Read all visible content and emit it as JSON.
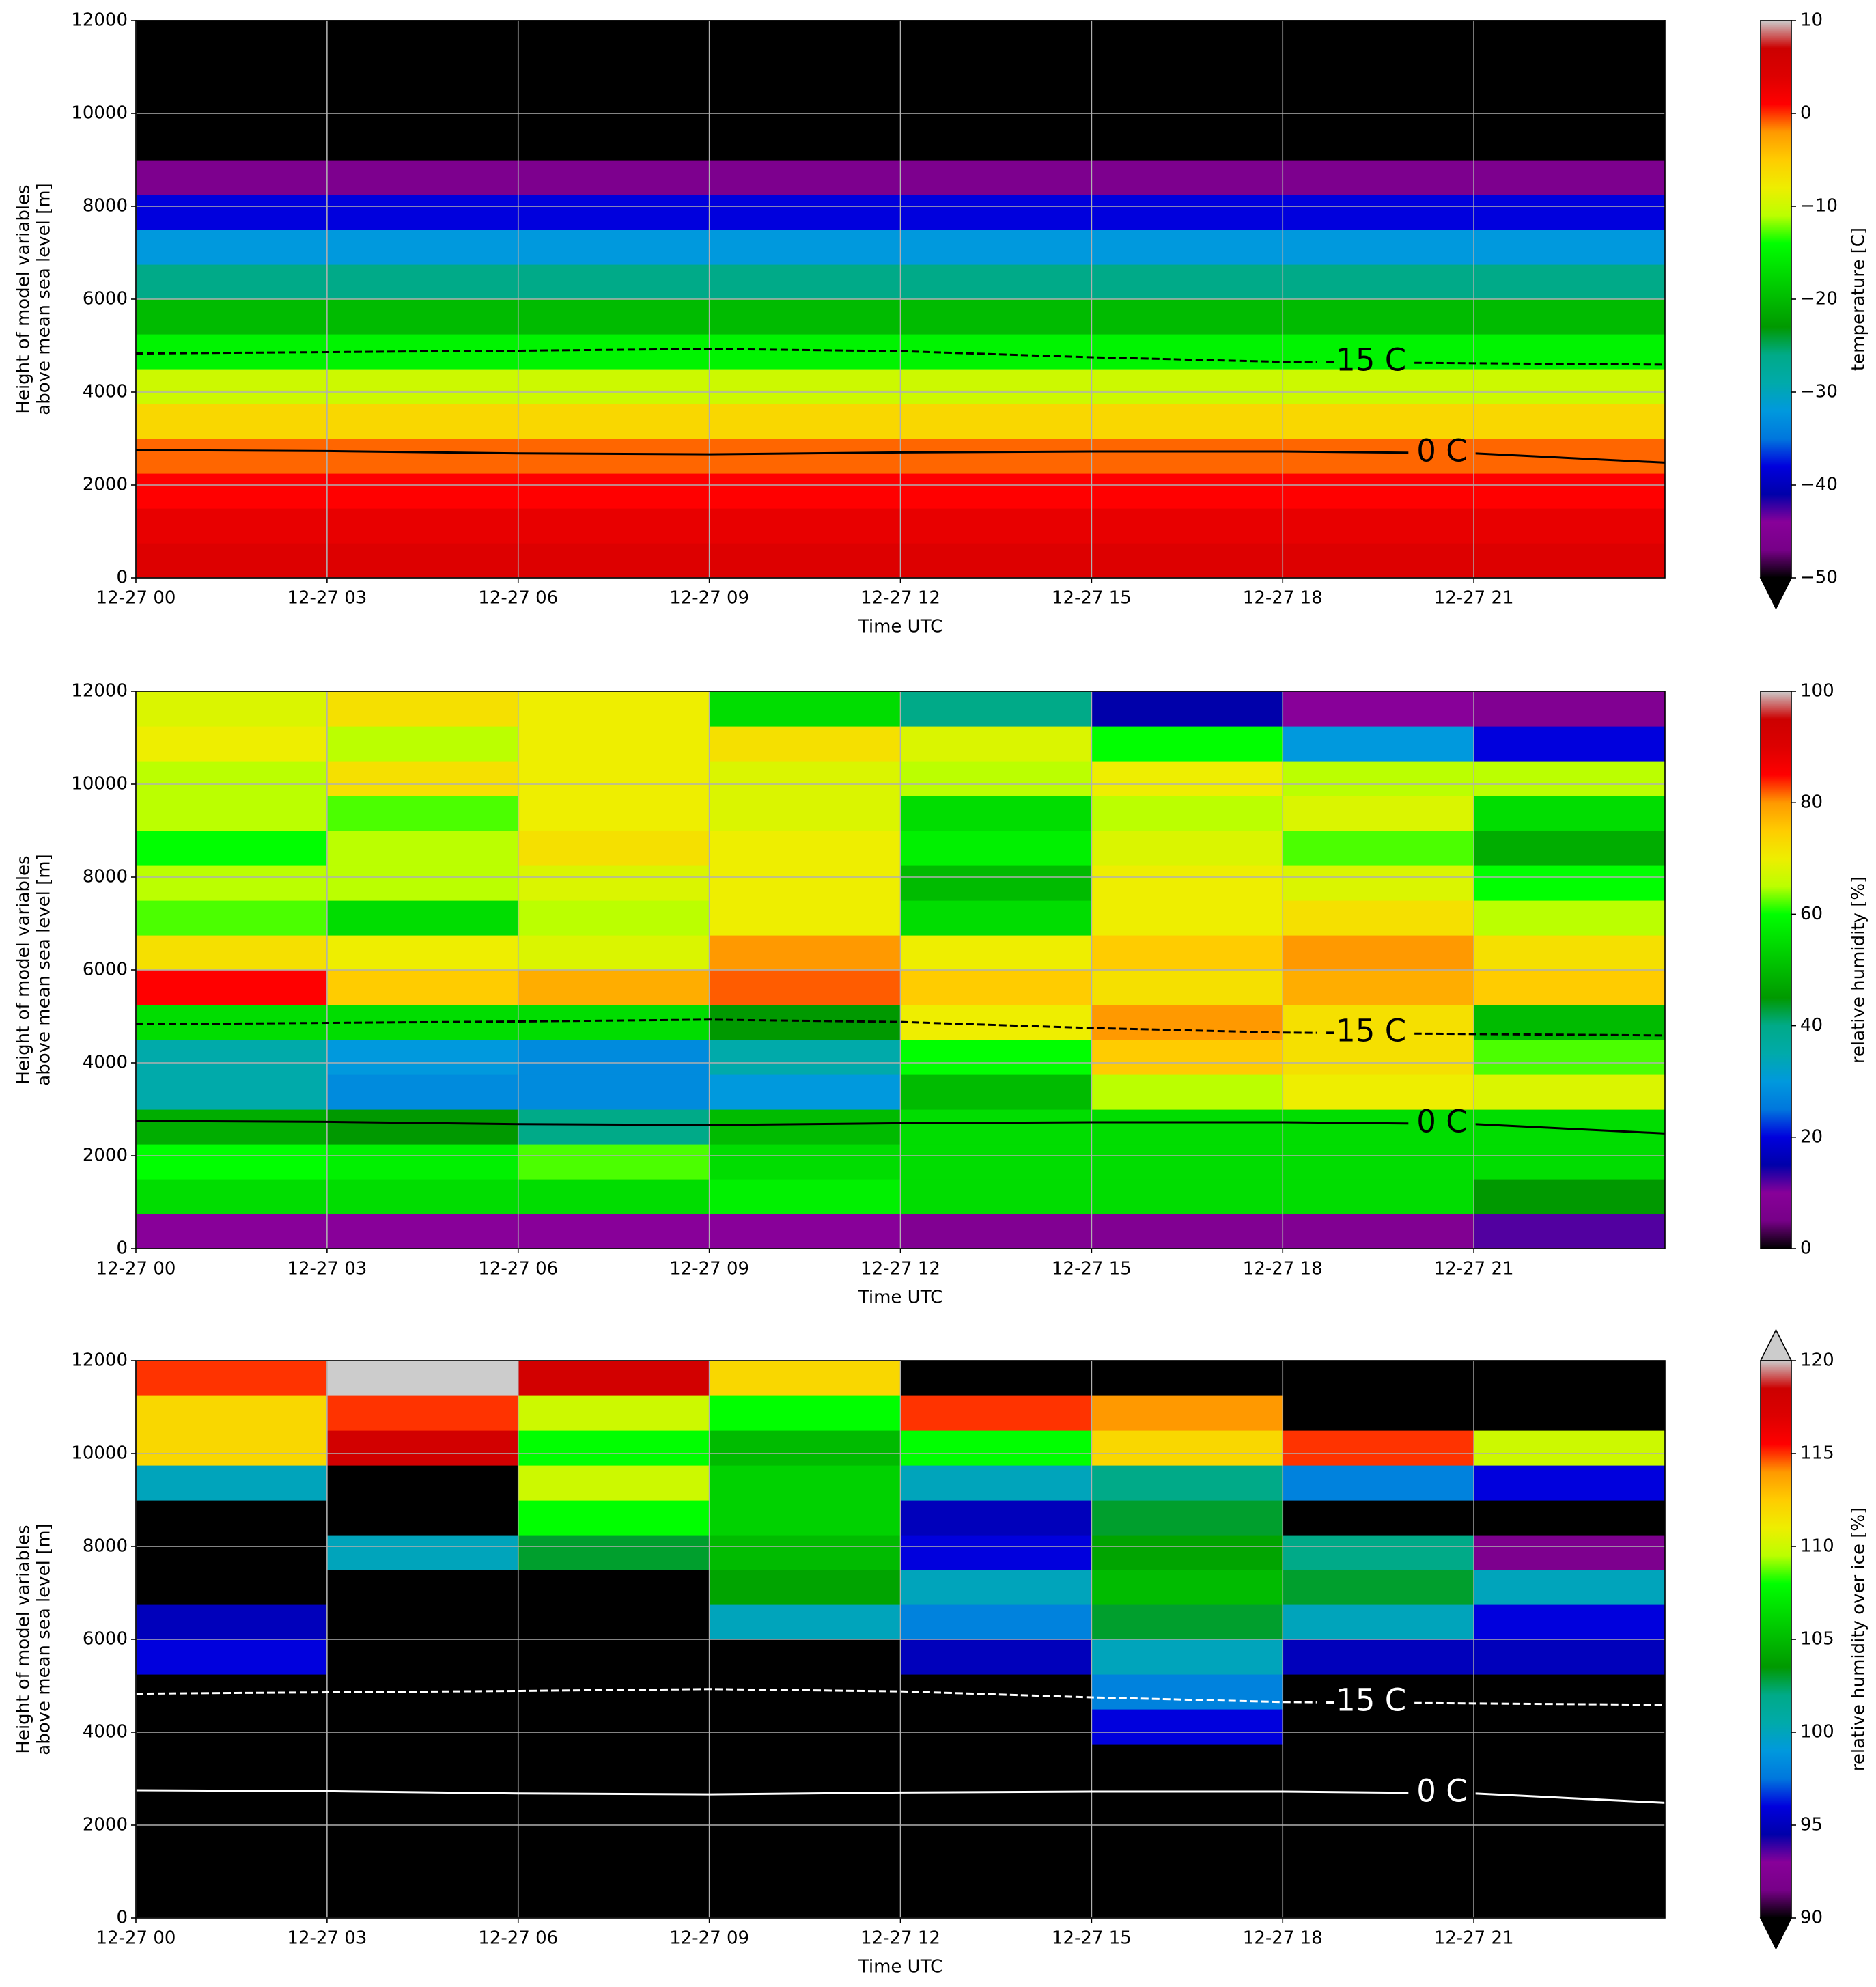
{
  "chart_data": [
    {
      "type": "heatmap",
      "xlabel": "Time UTC",
      "ylabel": [
        "Height of model variables",
        "above mean sea level [m]"
      ],
      "xlim": [
        0,
        24
      ],
      "xticks": [
        {
          "value": 0,
          "label": "12-27 00"
        },
        {
          "value": 3,
          "label": "12-27 03"
        },
        {
          "value": 6,
          "label": "12-27 06"
        },
        {
          "value": 9,
          "label": "12-27 09"
        },
        {
          "value": 12,
          "label": "12-27 12"
        },
        {
          "value": 15,
          "label": "12-27 15"
        },
        {
          "value": 18,
          "label": "12-27 18"
        },
        {
          "value": 21,
          "label": "12-27 21"
        }
      ],
      "ylim": [
        0,
        12000
      ],
      "yticks": [
        0,
        2000,
        4000,
        6000,
        8000,
        10000,
        12000
      ],
      "grid": true,
      "x_bins": [
        0,
        3,
        6,
        9,
        12,
        15,
        18,
        21,
        24
      ],
      "y_bins": [
        0,
        750,
        1500,
        2250,
        3000,
        3750,
        4500,
        5250,
        6000,
        6750,
        7500,
        8250,
        9000,
        9750,
        10500,
        11250,
        12000
      ],
      "z": [
        [
          4,
          4,
          4,
          4,
          4,
          4,
          4,
          4
        ],
        [
          3,
          3,
          3,
          3,
          3,
          3,
          3,
          3
        ],
        [
          1,
          1,
          1,
          1,
          1,
          1,
          1,
          1
        ],
        [
          -1,
          -1,
          -1,
          -1,
          -1,
          -1,
          -1,
          -1
        ],
        [
          -6,
          -6,
          -6,
          -6,
          -6,
          -6,
          -6,
          -6
        ],
        [
          -10,
          -10,
          -10,
          -10,
          -10,
          -10,
          -10,
          -10
        ],
        [
          -15,
          -15,
          -15,
          -15,
          -15,
          -15,
          -15,
          -15
        ],
        [
          -20,
          -20,
          -20,
          -20,
          -20,
          -20,
          -20,
          -20
        ],
        [
          -26,
          -26,
          -26,
          -26,
          -26,
          -26,
          -26,
          -26
        ],
        [
          -32,
          -32,
          -32,
          -32,
          -32,
          -32,
          -32,
          -32
        ],
        [
          -38,
          -38,
          -38,
          -38,
          -38,
          -38,
          -38,
          -38
        ],
        [
          -46,
          -46,
          -46,
          -46,
          -46,
          -46,
          -46,
          -46
        ],
        [
          -52,
          -52,
          -52,
          -52,
          -52,
          -52,
          -52,
          -52
        ],
        [
          -58,
          -58,
          -58,
          -58,
          -58,
          -58,
          -58,
          -58
        ],
        [
          -60,
          -60,
          -60,
          -60,
          -60,
          -60,
          -60,
          -60
        ],
        [
          -62,
          -62,
          -62,
          -62,
          -62,
          -62,
          -62,
          -62
        ]
      ],
      "colorbar": {
        "label": "temperature [C]",
        "colormap": "nipy_spectral",
        "lim": [
          -50,
          10
        ],
        "extend": "min",
        "ticks": [
          {
            "value": -50,
            "label": "−50"
          },
          {
            "value": -40,
            "label": "−40"
          },
          {
            "value": -30,
            "label": "−30"
          },
          {
            "value": -20,
            "label": "−20"
          },
          {
            "value": -10,
            "label": "−10"
          },
          0,
          10
        ]
      },
      "contour_color": "#000000",
      "contours": [
        {
          "label": "-15 C",
          "dashed": true,
          "x": [
            0,
            3,
            6,
            9,
            12,
            15,
            18,
            21,
            24
          ],
          "y": [
            4830,
            4860,
            4890,
            4930,
            4880,
            4750,
            4650,
            4620,
            4590
          ]
        },
        {
          "label": "0 C",
          "dashed": false,
          "x": [
            0,
            3,
            6,
            9,
            12,
            15,
            18,
            21,
            24
          ],
          "y": [
            2750,
            2730,
            2680,
            2660,
            2700,
            2720,
            2720,
            2680,
            2480
          ]
        }
      ]
    },
    {
      "type": "heatmap",
      "xlabel": "Time UTC",
      "ylabel": [
        "Height of model variables",
        "above mean sea level [m]"
      ],
      "xlim": [
        0,
        24
      ],
      "xticks": [
        {
          "value": 0,
          "label": "12-27 00"
        },
        {
          "value": 3,
          "label": "12-27 03"
        },
        {
          "value": 6,
          "label": "12-27 06"
        },
        {
          "value": 9,
          "label": "12-27 09"
        },
        {
          "value": 12,
          "label": "12-27 12"
        },
        {
          "value": 15,
          "label": "12-27 15"
        },
        {
          "value": 18,
          "label": "12-27 18"
        },
        {
          "value": 21,
          "label": "12-27 21"
        }
      ],
      "ylim": [
        0,
        12000
      ],
      "yticks": [
        0,
        2000,
        4000,
        6000,
        8000,
        10000,
        12000
      ],
      "grid": true,
      "x_bins": [
        0,
        3,
        6,
        9,
        12,
        15,
        18,
        21,
        24
      ],
      "y_bins": [
        0,
        750,
        1500,
        2250,
        3000,
        3750,
        4500,
        5250,
        6000,
        6750,
        7500,
        8250,
        9000,
        9750,
        10500,
        11250,
        12000
      ],
      "z": [
        [
          10,
          10,
          10,
          10,
          8,
          8,
          8,
          12
        ],
        [
          55,
          55,
          55,
          58,
          55,
          55,
          55,
          45
        ],
        [
          60,
          58,
          62,
          55,
          55,
          55,
          55,
          55
        ],
        [
          48,
          45,
          40,
          50,
          55,
          55,
          55,
          55
        ],
        [
          35,
          28,
          28,
          30,
          50,
          65,
          70,
          68
        ],
        [
          35,
          30,
          28,
          35,
          60,
          75,
          72,
          62
        ],
        [
          55,
          55,
          55,
          45,
          70,
          80,
          72,
          50
        ],
        [
          85,
          75,
          78,
          82,
          75,
          72,
          78,
          75
        ],
        [
          72,
          70,
          68,
          80,
          70,
          75,
          80,
          72
        ],
        [
          62,
          55,
          65,
          70,
          55,
          70,
          72,
          65
        ],
        [
          65,
          65,
          68,
          70,
          50,
          70,
          68,
          60
        ],
        [
          60,
          65,
          72,
          70,
          58,
          68,
          62,
          48
        ],
        [
          65,
          62,
          70,
          68,
          55,
          65,
          68,
          55
        ],
        [
          65,
          72,
          70,
          68,
          65,
          70,
          65,
          65
        ],
        [
          70,
          65,
          70,
          72,
          68,
          60,
          30,
          20
        ],
        [
          68,
          72,
          70,
          55,
          40,
          15,
          10,
          8
        ]
      ],
      "colorbar": {
        "label": "relative humidity [%]",
        "colormap": "nipy_spectral",
        "lim": [
          0,
          100
        ],
        "ticks": [
          0,
          20,
          40,
          60,
          80,
          100
        ]
      },
      "contour_color": "#000000",
      "contours": [
        {
          "label": "-15 C",
          "dashed": true,
          "x": [
            0,
            3,
            6,
            9,
            12,
            15,
            18,
            21,
            24
          ],
          "y": [
            4830,
            4860,
            4890,
            4930,
            4880,
            4750,
            4650,
            4620,
            4590
          ]
        },
        {
          "label": "0 C",
          "dashed": false,
          "x": [
            0,
            3,
            6,
            9,
            12,
            15,
            18,
            21,
            24
          ],
          "y": [
            2750,
            2730,
            2680,
            2660,
            2700,
            2720,
            2720,
            2680,
            2480
          ]
        }
      ]
    },
    {
      "type": "heatmap",
      "xlabel": "Time UTC",
      "ylabel": [
        "Height of model variables",
        "above mean sea level [m]"
      ],
      "xlim": [
        0,
        24
      ],
      "xticks": [
        {
          "value": 0,
          "label": "12-27 00"
        },
        {
          "value": 3,
          "label": "12-27 03"
        },
        {
          "value": 6,
          "label": "12-27 06"
        },
        {
          "value": 9,
          "label": "12-27 09"
        },
        {
          "value": 12,
          "label": "12-27 12"
        },
        {
          "value": 15,
          "label": "12-27 15"
        },
        {
          "value": 18,
          "label": "12-27 18"
        },
        {
          "value": 21,
          "label": "12-27 21"
        }
      ],
      "ylim": [
        0,
        12000
      ],
      "yticks": [
        0,
        2000,
        4000,
        6000,
        8000,
        10000,
        12000
      ],
      "grid": true,
      "x_bins": [
        0,
        3,
        6,
        9,
        12,
        15,
        18,
        21,
        24
      ],
      "y_bins": [
        0,
        750,
        1500,
        2250,
        3000,
        3750,
        4500,
        5250,
        6000,
        6750,
        7500,
        8250,
        9000,
        9750,
        10500,
        11250,
        12000
      ],
      "z": [
        [
          80,
          80,
          80,
          80,
          80,
          80,
          80,
          80
        ],
        [
          80,
          80,
          80,
          80,
          80,
          80,
          80,
          80
        ],
        [
          80,
          80,
          80,
          80,
          80,
          80,
          80,
          80
        ],
        [
          80,
          80,
          80,
          80,
          80,
          80,
          80,
          80
        ],
        [
          80,
          80,
          80,
          80,
          80,
          80,
          80,
          80
        ],
        [
          80,
          80,
          80,
          80,
          80,
          96,
          80,
          80
        ],
        [
          80,
          80,
          80,
          80,
          88,
          98,
          80,
          80
        ],
        [
          96,
          80,
          80,
          85,
          95,
          100,
          95,
          95
        ],
        [
          95,
          88,
          88,
          100,
          98,
          103,
          100,
          96
        ],
        [
          80,
          80,
          80,
          104,
          100,
          105,
          103,
          100
        ],
        [
          80,
          100,
          103,
          105,
          96,
          104,
          102,
          92
        ],
        [
          80,
          80,
          108,
          106,
          95,
          103,
          90,
          80
        ],
        [
          100,
          85,
          110,
          106,
          100,
          102,
          98,
          96
        ],
        [
          112,
          118,
          108,
          105,
          108,
          112,
          115,
          110
        ],
        [
          112,
          115,
          110,
          108,
          115,
          114,
          80,
          80
        ],
        [
          115,
          120,
          118,
          112,
          80,
          80,
          80,
          80
        ]
      ],
      "colorbar": {
        "label": "relative humidity over ice [%]",
        "colormap": "nipy_spectral",
        "lim": [
          90,
          120
        ],
        "extend": "both",
        "ticks": [
          90,
          95,
          100,
          105,
          110,
          115,
          120
        ]
      },
      "contour_color": "#ffffff",
      "contours": [
        {
          "label": "-15 C",
          "dashed": true,
          "x": [
            0,
            3,
            6,
            9,
            12,
            15,
            18,
            21,
            24
          ],
          "y": [
            4830,
            4860,
            4890,
            4930,
            4880,
            4750,
            4650,
            4620,
            4590
          ]
        },
        {
          "label": "0 C",
          "dashed": false,
          "x": [
            0,
            3,
            6,
            9,
            12,
            15,
            18,
            21,
            24
          ],
          "y": [
            2750,
            2730,
            2680,
            2660,
            2700,
            2720,
            2720,
            2680,
            2480
          ]
        }
      ]
    }
  ]
}
